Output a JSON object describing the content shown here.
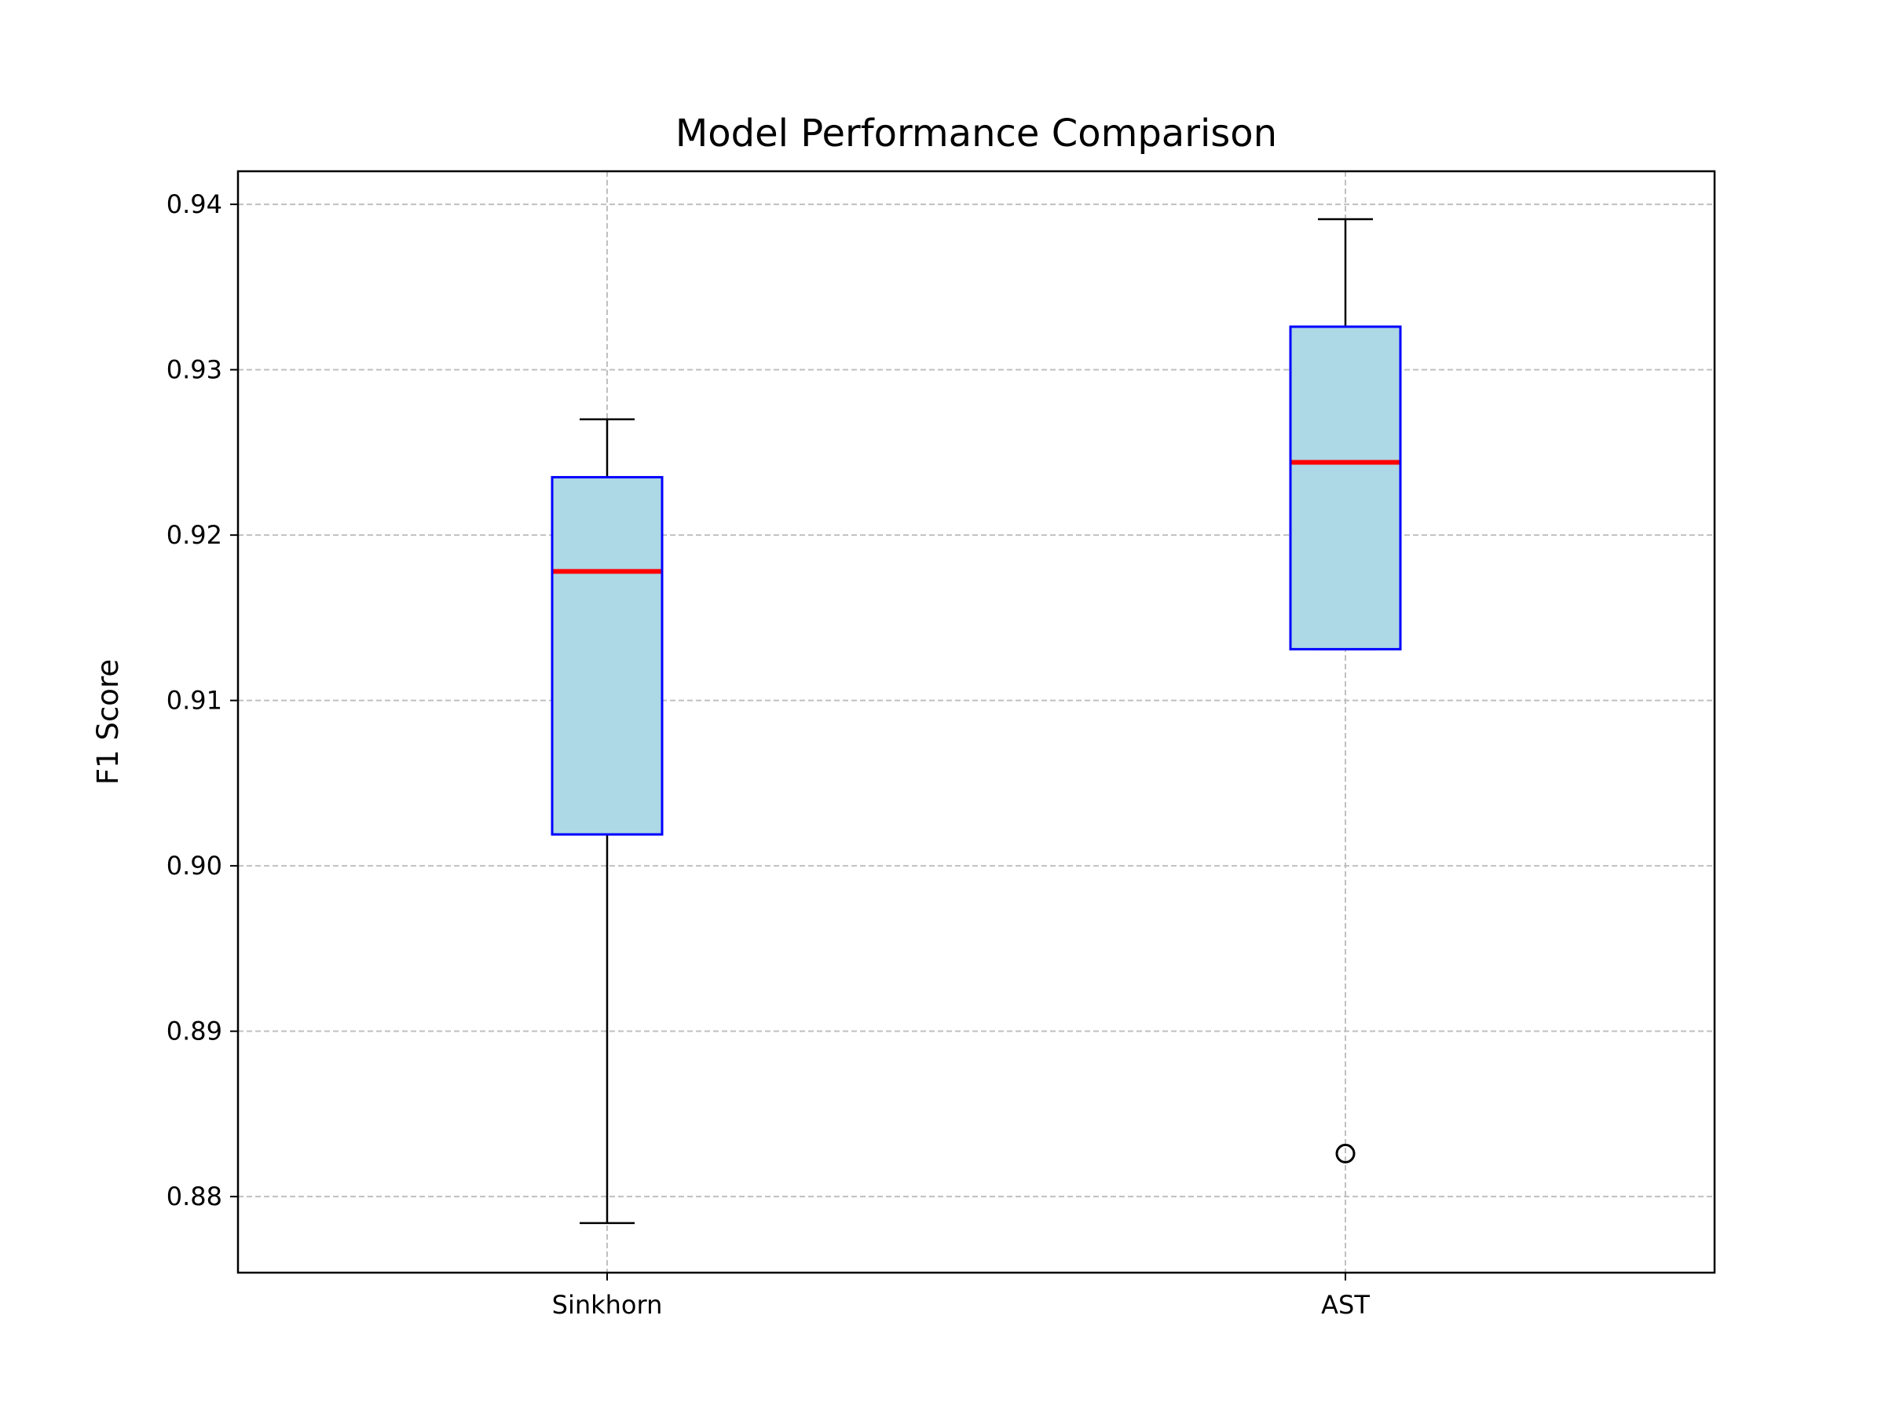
{
  "chart_data": {
    "type": "box",
    "title": "Model Performance Comparison",
    "xlabel": "",
    "ylabel": "F1 Score",
    "categories": [
      "Sinkhorn",
      "AST"
    ],
    "boxes": [
      {
        "label": "Sinkhorn",
        "whisker_low": 0.8784,
        "q1": 0.9019,
        "median": 0.9178,
        "q3": 0.9235,
        "whisker_high": 0.927,
        "outliers": []
      },
      {
        "label": "AST",
        "whisker_low": 0.9131,
        "q1": 0.9131,
        "median": 0.9244,
        "q3": 0.9326,
        "whisker_high": 0.9391,
        "outliers": [
          0.8826
        ]
      }
    ],
    "ylim": [
      0.8754,
      0.942
    ],
    "y_ticks": [
      0.88,
      0.89,
      0.9,
      0.91,
      0.92,
      0.93,
      0.94
    ],
    "y_tick_labels": [
      "0.88",
      "0.89",
      "0.90",
      "0.91",
      "0.92",
      "0.93",
      "0.94"
    ],
    "grid": true,
    "colors": {
      "box_fill": "#add8e6",
      "box_edge": "#0000ff",
      "median": "#ff0000",
      "whisker": "#000000",
      "grid": "#c0c0c0"
    }
  }
}
